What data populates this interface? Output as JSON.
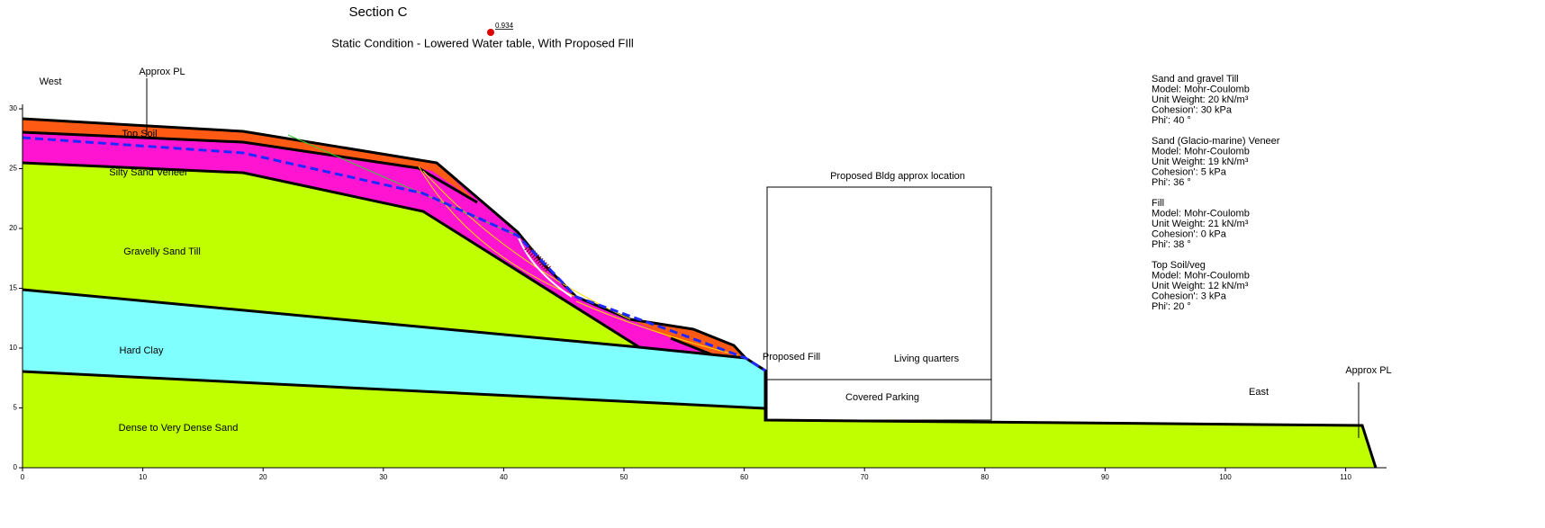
{
  "header": {
    "title": "Section C",
    "factor_of_safety": "0.934",
    "subtitle": "Static Condition - Lowered Water table, With Proposed FIll"
  },
  "axes": {
    "xticks": [
      0,
      10,
      20,
      30,
      40,
      50,
      60,
      70,
      80,
      90,
      100,
      110
    ],
    "yticks": [
      0,
      5,
      10,
      15,
      20,
      25,
      30
    ]
  },
  "labels": {
    "west": "West",
    "approx_pl_west": "Approx PL",
    "east": "East",
    "approx_pl_east": "Approx PL",
    "building": "Proposed Bldg approx location",
    "living": "Living quarters",
    "parking": "Covered Parking",
    "fill": "Proposed Fill"
  },
  "layers": [
    "Top Soil",
    "Silty Sand Veneer",
    "Gravelly Sand Till",
    "Hard Clay",
    "Dense to Very Dense Sand"
  ],
  "materials": [
    {
      "name": "Sand and gravel Till",
      "lines": [
        "Model: Mohr-Coulomb",
        "Unit Weight: 20 kN/m³",
        "Cohesion': 30 kPa",
        "Phi': 40 °"
      ]
    },
    {
      "name": "Sand (Glacio-marine) Veneer",
      "lines": [
        "Model: Mohr-Coulomb",
        "Unit Weight: 19 kN/m³",
        "Cohesion': 5 kPa",
        "Phi': 36 °"
      ]
    },
    {
      "name": "Fill",
      "lines": [
        "Model: Mohr-Coulomb",
        "Unit Weight: 21 kN/m³",
        "Cohesion': 0 kPa",
        "Phi': 38 °"
      ]
    },
    {
      "name": "Top Soil/veg",
      "lines": [
        "Model: Mohr-Coulomb",
        "Unit Weight: 12 kN/m³",
        "Cohesion': 3 kPa",
        "Phi': 20 °"
      ]
    }
  ]
}
